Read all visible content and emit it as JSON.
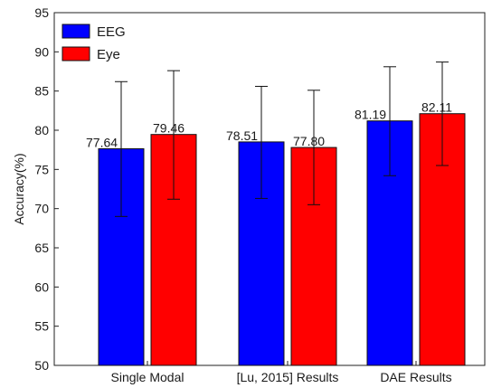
{
  "chart_data": {
    "type": "bar",
    "categories": [
      "Single Modal",
      "[Lu, 2015] Results",
      "DAE Results"
    ],
    "series": [
      {
        "name": "EEG",
        "color": "#0000ff",
        "values": [
          77.64,
          78.51,
          81.19
        ],
        "error_low": [
          69.0,
          71.3,
          74.2
        ],
        "error_high": [
          86.2,
          85.6,
          88.1
        ],
        "labels": [
          "77.64",
          "78.51",
          "81.19"
        ]
      },
      {
        "name": "Eye",
        "color": "#ff0000",
        "values": [
          79.46,
          77.8,
          82.11
        ],
        "error_low": [
          71.2,
          70.5,
          75.5
        ],
        "error_high": [
          87.6,
          85.1,
          88.7
        ],
        "labels": [
          "79.46",
          "77.80",
          "82.11"
        ]
      }
    ],
    "xlabel": "",
    "ylabel": "Accuracy(%)",
    "ylim": [
      50,
      95
    ],
    "yticks": [
      50,
      55,
      60,
      65,
      70,
      75,
      80,
      85,
      90,
      95
    ],
    "grid": false,
    "legend_position": "top-left"
  }
}
